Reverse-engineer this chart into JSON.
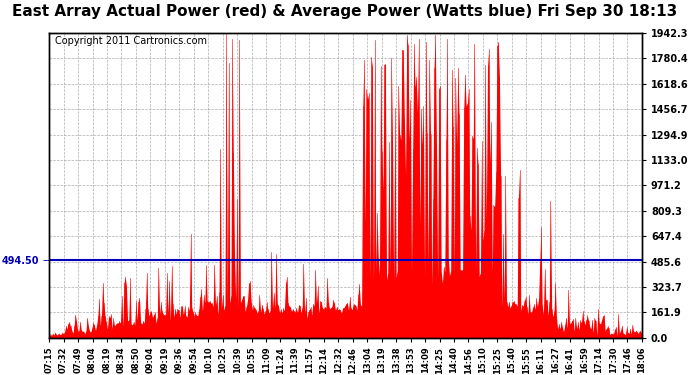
{
  "title": "East Array Actual Power (red) & Average Power (Watts blue) Fri Sep 30 18:13",
  "copyright": "Copyright 2011 Cartronics.com",
  "avg_power": 494.5,
  "ymax": 1942.3,
  "ymin": 0.0,
  "yticks": [
    0.0,
    161.9,
    323.7,
    485.6,
    647.4,
    809.3,
    971.2,
    1133.0,
    1294.9,
    1456.7,
    1618.6,
    1780.4,
    1942.3
  ],
  "avg_label": "494.50",
  "bar_color": "#FF0000",
  "avg_color": "#0000BB",
  "bg_color": "#FFFFFF",
  "plot_bg": "#FFFFFF",
  "grid_color": "#999999",
  "title_fontsize": 11,
  "copyright_fontsize": 7,
  "tick_labels": [
    "07:15",
    "07:32",
    "07:49",
    "08:04",
    "08:19",
    "08:34",
    "08:50",
    "09:04",
    "09:19",
    "09:36",
    "09:54",
    "10:10",
    "10:25",
    "10:39",
    "10:55",
    "11:09",
    "11:24",
    "11:39",
    "11:57",
    "12:14",
    "12:32",
    "12:46",
    "13:04",
    "13:19",
    "13:38",
    "13:53",
    "14:09",
    "14:25",
    "14:40",
    "14:56",
    "15:10",
    "15:25",
    "15:40",
    "15:55",
    "16:11",
    "16:27",
    "16:41",
    "16:59",
    "17:14",
    "17:30",
    "17:46",
    "18:06"
  ]
}
